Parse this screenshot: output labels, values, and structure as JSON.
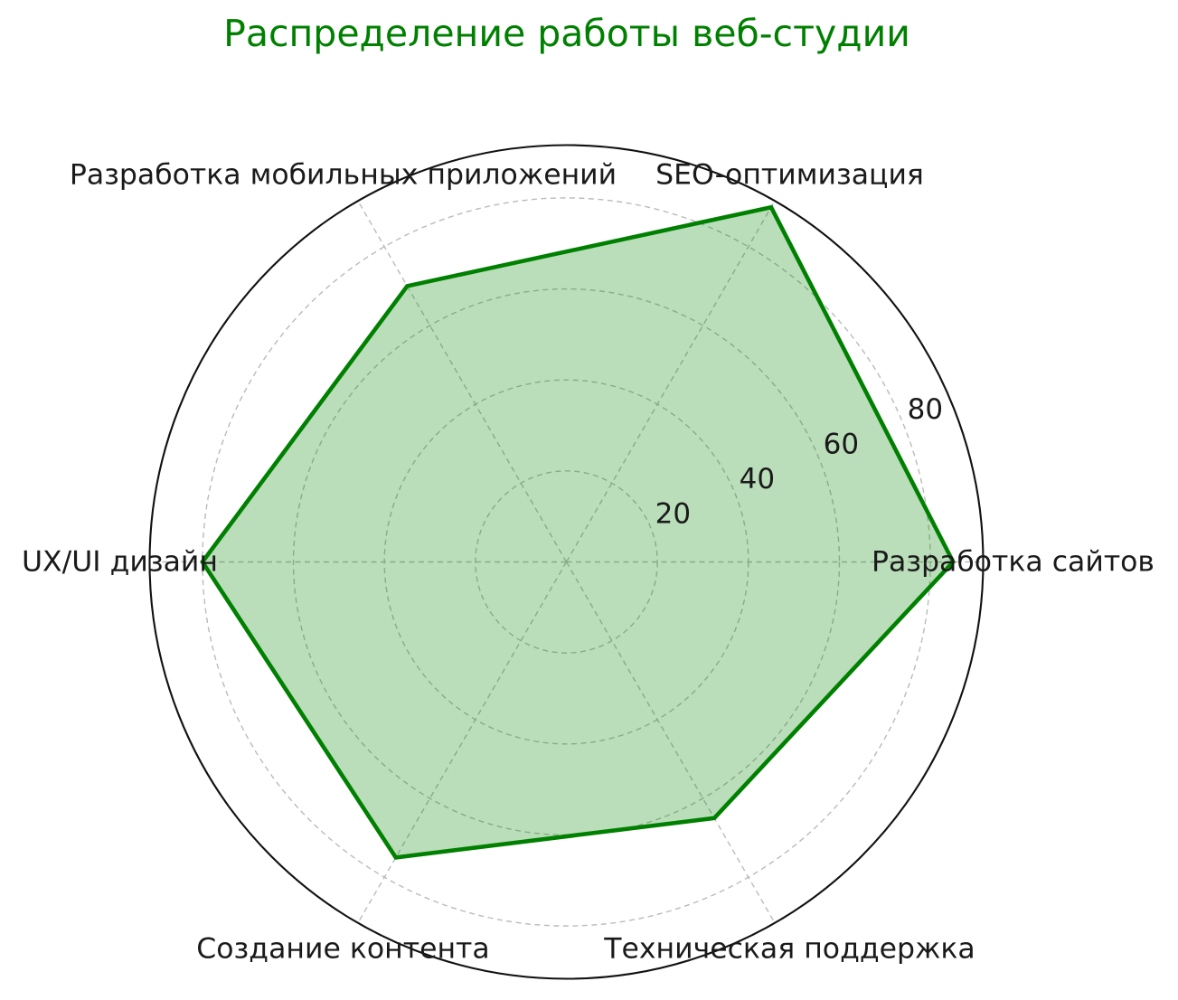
{
  "chart_data": {
    "type": "radar",
    "title": "Распределение работы веб-студии",
    "categories": [
      "Разработка сайтов",
      "SEO-оптимизация",
      "Разработка мобильных приложений",
      "UX/UI дизайн",
      "Создание контента",
      "Техническая поддержка"
    ],
    "values": [
      85,
      90,
      70,
      80,
      75,
      65
    ],
    "angles_deg": [
      0,
      60,
      120,
      180,
      240,
      300
    ],
    "rticks": [
      20,
      40,
      60,
      80
    ],
    "rtick_labels": [
      "20",
      "40",
      "60",
      "80"
    ],
    "rlim": [
      0,
      91.6
    ],
    "rlabel_angle_deg": 22.5,
    "grid": true,
    "grid_style": "dashed",
    "legend_position": "none",
    "colors": {
      "title": "#008000",
      "line": "#008000",
      "fill": "rgba(0,128,0,0.27)",
      "grid": "#bbbbbb",
      "outline": "#111111",
      "text": "#1a1a1a"
    }
  }
}
